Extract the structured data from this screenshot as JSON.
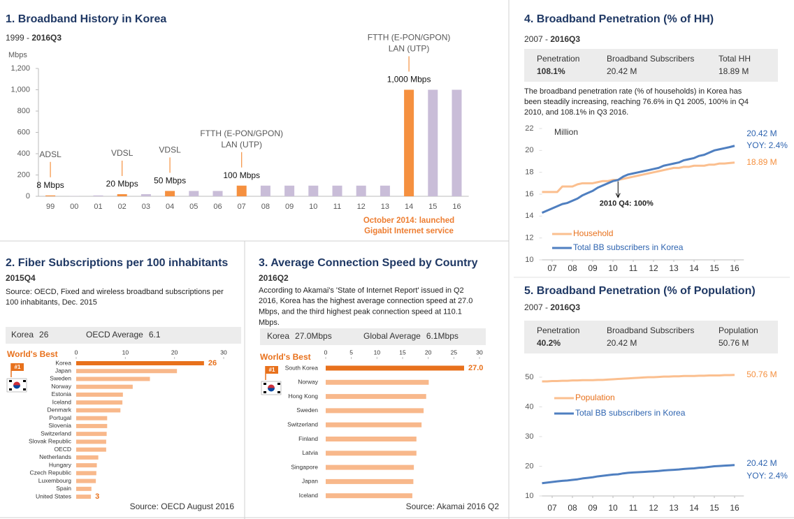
{
  "chart_data": [
    {
      "type": "bar",
      "title": "1. Broadband History in Korea",
      "subtitle": [
        "1999 - ",
        "2016Q3"
      ],
      "ylabel": "Mbps",
      "categories": [
        "99",
        "00",
        "01",
        "02",
        "03",
        "04",
        "05",
        "06",
        "07",
        "08",
        "09",
        "10",
        "11",
        "12",
        "13",
        "14",
        "15",
        "16"
      ],
      "values": [
        8,
        2,
        8,
        20,
        20,
        50,
        50,
        50,
        100,
        100,
        100,
        100,
        100,
        100,
        100,
        1000,
        1000,
        1000
      ],
      "value_labels": [
        "8 Mbps",
        null,
        null,
        "20 Mbps",
        null,
        "50 Mbps",
        null,
        null,
        "100 Mbps",
        null,
        null,
        null,
        null,
        null,
        null,
        "1,000 Mbps",
        null,
        null
      ],
      "colors": [
        "#f5903f",
        "#c9bdd8",
        "#c9bdd8",
        "#f5903f",
        "#c9bdd8",
        "#f5903f",
        "#c9bdd8",
        "#c9bdd8",
        "#f5903f",
        "#c9bdd8",
        "#c9bdd8",
        "#c9bdd8",
        "#c9bdd8",
        "#c9bdd8",
        "#c9bdd8",
        "#f5903f",
        "#c9bdd8",
        "#c9bdd8"
      ],
      "annotations": [
        {
          "category": "99",
          "lines": [
            "ADSL"
          ]
        },
        {
          "category": "02",
          "lines": [
            "VDSL"
          ]
        },
        {
          "category": "04",
          "lines": [
            "VDSL"
          ]
        },
        {
          "category": "07",
          "lines": [
            "FTTH (E-PON/GPON)",
            "LAN (UTP)"
          ]
        },
        {
          "category": "14",
          "lines": [
            "FTTH (E-PON/GPON)",
            "LAN (UTP)"
          ]
        }
      ],
      "note": [
        "October 2014: launched",
        "Gigabit Internet service"
      ],
      "ylim": [
        0,
        1200
      ],
      "yticks": [
        0,
        200,
        400,
        600,
        800,
        {
          "value": 1000,
          "label": "1,000"
        },
        {
          "value": 1200,
          "label": "1,200"
        }
      ]
    },
    {
      "type": "hbar",
      "title": "2. Fiber Subscriptions per 100 inhabitants",
      "subtitle": "2015Q4",
      "description": [
        "Source: OECD, Fixed and wireless broadband subscriptions per",
        "100 inhabitants, Dec. 2015"
      ],
      "highlights": [
        {
          "label": "Korea",
          "value": "26"
        },
        {
          "label": "OECD Average",
          "value": "6.1"
        }
      ],
      "badge_title": "World's Best",
      "badge": "#1",
      "categories": [
        "Korea",
        "Japan",
        "Sweden",
        "Norway",
        "Estonia",
        "Iceland",
        "Denmark",
        "Portugal",
        "Slovenia",
        "Switzerland",
        "Slovak Republic",
        "OECD",
        "Netherlands",
        "Hungary",
        "Czech Republic",
        "Luxembourg",
        "Spain",
        "United States"
      ],
      "values": [
        26,
        20.5,
        15,
        11.5,
        9.5,
        9.4,
        9.0,
        6.3,
        6.3,
        6.2,
        6.1,
        6.1,
        4.5,
        4.2,
        4.1,
        4.0,
        3.1,
        3
      ],
      "value_labels": [
        "26",
        null,
        null,
        null,
        null,
        null,
        null,
        null,
        null,
        null,
        null,
        null,
        null,
        null,
        null,
        null,
        null,
        "3"
      ],
      "colors": [
        "#e8711c",
        "#f8b88b",
        "#f8b88b",
        "#f8b88b",
        "#f8b88b",
        "#f8b88b",
        "#f8b88b",
        "#f8b88b",
        "#f8b88b",
        "#f8b88b",
        "#f8b88b",
        "#f8b88b",
        "#f8b88b",
        "#f8b88b",
        "#f8b88b",
        "#f8b88b",
        "#f8b88b",
        "#f8b88b"
      ],
      "xlim": [
        0,
        30
      ],
      "xticks": [
        0,
        10,
        20,
        30
      ],
      "source": "Source: OECD August 2016"
    },
    {
      "type": "hbar",
      "title": "3. Average Connection Speed by Country",
      "subtitle": "2016Q2",
      "description": [
        "According to Akamai's 'State of Internet Report' issued in Q2",
        "2016, Korea has the highest average connection speed at 27.0",
        "Mbps, and the third highest peak connection speed at 110.1",
        "Mbps."
      ],
      "highlights": [
        {
          "label": "Korea",
          "value": "27.0Mbps"
        },
        {
          "label": "Global Average",
          "value": "6.1Mbps"
        }
      ],
      "badge_title": "World's Best",
      "badge": "#1",
      "categories": [
        "South Korea",
        "Norway",
        "Hong Kong",
        "Sweden",
        "Switzerland",
        "Finland",
        "Latvia",
        "Singapore",
        "Japan",
        "Iceland"
      ],
      "values": [
        27.0,
        20.1,
        19.6,
        19.1,
        18.7,
        17.7,
        17.7,
        17.2,
        17.1,
        16.9
      ],
      "value_labels": [
        "27.0",
        null,
        null,
        null,
        null,
        null,
        null,
        null,
        null,
        null
      ],
      "colors": [
        "#e8711c",
        "#f8b88b",
        "#f8b88b",
        "#f8b88b",
        "#f8b88b",
        "#f8b88b",
        "#f8b88b",
        "#f8b88b",
        "#f8b88b",
        "#f8b88b"
      ],
      "xlim": [
        0,
        30
      ],
      "xticks": [
        0,
        5,
        10,
        15,
        20,
        25,
        30
      ],
      "source": "Source: Akamai 2016 Q2"
    },
    {
      "type": "line",
      "title": "4. Broadband Penetration (% of HH)",
      "subtitle": [
        "2007 - ",
        "2016Q3"
      ],
      "stats": [
        {
          "label": "Penetration",
          "value": "108.1%"
        },
        {
          "label": "Broadband Subscribers",
          "value": "20.42 M"
        },
        {
          "label": "Total HH",
          "value": "18.89 M"
        }
      ],
      "description": [
        "The broadband penetration rate (% of households) in Korea has",
        "been steadily increasing, reaching 76.6% in Q1 2005, 100% in Q4",
        "2010, and 108.1% in Q3 2016."
      ],
      "ylabel": "Million",
      "x": [
        2007,
        2007.25,
        2007.5,
        2007.75,
        2008,
        2008.25,
        2008.5,
        2008.75,
        2009,
        2009.25,
        2009.5,
        2009.75,
        2010,
        2010.25,
        2010.5,
        2010.75,
        2011,
        2011.25,
        2011.5,
        2011.75,
        2012,
        2012.25,
        2012.5,
        2012.75,
        2013,
        2013.25,
        2013.5,
        2013.75,
        2014,
        2014.25,
        2014.5,
        2014.75,
        2015,
        2015.25,
        2015.5,
        2015.75,
        2016,
        2016.25,
        2016.5
      ],
      "series": [
        {
          "name": "Household",
          "color": "#fbbf8f",
          "end_labels": [
            "18.89 M"
          ],
          "label_color": "#f5903f",
          "values": [
            16.2,
            16.2,
            16.2,
            16.2,
            16.7,
            16.7,
            16.7,
            16.9,
            17.0,
            17.0,
            17.0,
            17.1,
            17.2,
            17.2,
            17.3,
            17.3,
            17.4,
            17.5,
            17.6,
            17.7,
            17.8,
            17.9,
            18.0,
            18.1,
            18.2,
            18.3,
            18.4,
            18.4,
            18.5,
            18.5,
            18.6,
            18.6,
            18.6,
            18.7,
            18.7,
            18.8,
            18.8,
            18.85,
            18.89
          ]
        },
        {
          "name": "Total BB subscribers in Korea",
          "color": "#4f7fc0",
          "end_labels": [
            "20.42 M",
            "YOY: 2.4%"
          ],
          "label_color": "#2e64b0",
          "values": [
            14.3,
            14.5,
            14.7,
            14.9,
            15.1,
            15.2,
            15.4,
            15.6,
            15.9,
            16.1,
            16.3,
            16.6,
            16.8,
            17.0,
            17.2,
            17.3,
            17.6,
            17.8,
            17.9,
            18.0,
            18.1,
            18.2,
            18.3,
            18.4,
            18.6,
            18.7,
            18.8,
            18.9,
            19.1,
            19.2,
            19.3,
            19.5,
            19.6,
            19.8,
            20.0,
            20.1,
            20.2,
            20.3,
            20.42
          ]
        }
      ],
      "annotation": {
        "x": 2010.75,
        "text": "2010 Q4: 100%"
      },
      "xlim": [
        2007,
        2016.75
      ],
      "xticks": [
        {
          "value": 2007.5,
          "label": "07"
        },
        {
          "value": 2008.5,
          "label": "08"
        },
        {
          "value": 2009.5,
          "label": "09"
        },
        {
          "value": 2010.5,
          "label": "10"
        },
        {
          "value": 2011.5,
          "label": "11"
        },
        {
          "value": 2012.5,
          "label": "12"
        },
        {
          "value": 2013.5,
          "label": "13"
        },
        {
          "value": 2014.5,
          "label": "14"
        },
        {
          "value": 2015.5,
          "label": "15"
        },
        {
          "value": 2016.5,
          "label": "16"
        }
      ],
      "ylim": [
        10,
        22
      ],
      "yticks": [
        10,
        12,
        14,
        16,
        18,
        20,
        22
      ]
    },
    {
      "type": "line",
      "title": "5. Broadband Penetration (% of Population)",
      "subtitle": [
        "2007 - ",
        "2016Q3"
      ],
      "stats": [
        {
          "label": "Penetration",
          "value": "40.2%"
        },
        {
          "label": "Broadband Subscribers",
          "value": "20.42 M"
        },
        {
          "label": "Population",
          "value": "50.76 M"
        }
      ],
      "x": [
        2007,
        2007.25,
        2007.5,
        2007.75,
        2008,
        2008.25,
        2008.5,
        2008.75,
        2009,
        2009.25,
        2009.5,
        2009.75,
        2010,
        2010.25,
        2010.5,
        2010.75,
        2011,
        2011.25,
        2011.5,
        2011.75,
        2012,
        2012.25,
        2012.5,
        2012.75,
        2013,
        2013.25,
        2013.5,
        2013.75,
        2014,
        2014.25,
        2014.5,
        2014.75,
        2015,
        2015.25,
        2015.5,
        2015.75,
        2016,
        2016.25,
        2016.5
      ],
      "series": [
        {
          "name": "Population",
          "color": "#fbbf8f",
          "end_labels": [
            "50.76 M"
          ],
          "label_color": "#f5903f",
          "values": [
            48.6,
            48.6,
            48.7,
            48.7,
            48.8,
            48.8,
            48.9,
            48.9,
            49.0,
            49.0,
            49.0,
            49.1,
            49.1,
            49.2,
            49.3,
            49.4,
            49.5,
            49.6,
            49.7,
            49.8,
            49.9,
            50.0,
            50.0,
            50.1,
            50.2,
            50.2,
            50.3,
            50.3,
            50.4,
            50.4,
            50.4,
            50.5,
            50.5,
            50.6,
            50.6,
            50.6,
            50.7,
            50.7,
            50.76
          ]
        },
        {
          "name": "Total BB subscribers in Korea",
          "color": "#4f7fc0",
          "end_labels": [
            "20.42 M",
            "YOY: 2.4%"
          ],
          "label_color": "#2e64b0",
          "values": [
            14.3,
            14.5,
            14.7,
            14.9,
            15.1,
            15.2,
            15.4,
            15.6,
            15.9,
            16.1,
            16.3,
            16.6,
            16.8,
            17.0,
            17.2,
            17.3,
            17.6,
            17.8,
            17.9,
            18.0,
            18.1,
            18.2,
            18.3,
            18.4,
            18.6,
            18.7,
            18.8,
            18.9,
            19.1,
            19.2,
            19.3,
            19.5,
            19.6,
            19.8,
            20.0,
            20.1,
            20.2,
            20.3,
            20.42
          ]
        }
      ],
      "xlim": [
        2007,
        2016.75
      ],
      "xticks": [
        {
          "value": 2007.5,
          "label": "07"
        },
        {
          "value": 2008.5,
          "label": "08"
        },
        {
          "value": 2009.5,
          "label": "09"
        },
        {
          "value": 2010.5,
          "label": "10"
        },
        {
          "value": 2011.5,
          "label": "11"
        },
        {
          "value": 2012.5,
          "label": "12"
        },
        {
          "value": 2013.5,
          "label": "13"
        },
        {
          "value": 2014.5,
          "label": "14"
        },
        {
          "value": 2015.5,
          "label": "15"
        },
        {
          "value": 2016.5,
          "label": "16"
        }
      ],
      "ylim": [
        10,
        55
      ],
      "yticks": [
        10,
        20,
        30,
        40,
        50
      ]
    }
  ]
}
